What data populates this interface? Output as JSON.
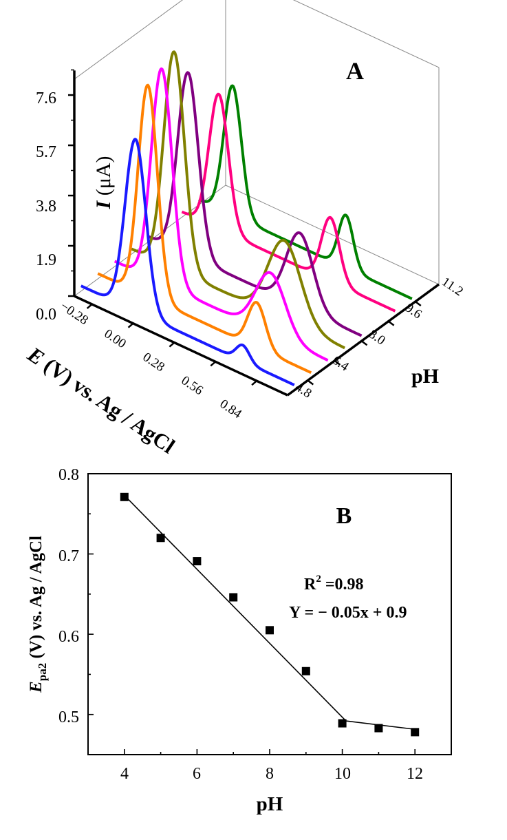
{
  "chart_data": [
    {
      "type": "waterfall-3d-line",
      "panel_label": "A",
      "z_label_italic": "I",
      "z_label_unit": " (μA)",
      "z_ticks": [
        "0.0",
        "1.9",
        "3.8",
        "5.7",
        "7.6"
      ],
      "z_range": [
        0,
        8.2
      ],
      "x_label_italic": "E",
      "x_label_rest": " (V) vs. Ag / AgCl",
      "x_ticks": [
        "−0.28",
        "0.00",
        "0.28",
        "0.56",
        "0.84"
      ],
      "x_tick_values": [
        -0.28,
        0.0,
        0.28,
        0.56,
        0.84
      ],
      "x_range": [
        -0.4,
        1.05
      ],
      "y_label": "pH",
      "y_ticks": [
        "4.8",
        "6.4",
        "8.0",
        "9.6",
        "11.2"
      ],
      "y_tick_values": [
        4.8,
        6.4,
        8.0,
        9.6,
        11.2
      ],
      "y_range": [
        3.6,
        12.6
      ],
      "series": [
        {
          "name": "pH 4",
          "pH": 4,
          "color": "#1a1aff",
          "baseline": 0.2,
          "peaks": [
            {
              "E": -0.03,
              "I": 6.5,
              "w": 0.07
            },
            {
              "E": 0.7,
              "I": 0.6,
              "w": 0.045
            }
          ]
        },
        {
          "name": "pH 5",
          "pH": 5,
          "color": "#ff8000",
          "baseline": 0.2,
          "peaks": [
            {
              "E": -0.06,
              "I": 8.0,
              "w": 0.065
            },
            {
              "E": 0.68,
              "I": 1.7,
              "w": 0.06
            }
          ]
        },
        {
          "name": "pH 6",
          "pH": 6,
          "color": "#ff00ff",
          "baseline": 0.2,
          "peaks": [
            {
              "E": -0.08,
              "I": 8.1,
              "w": 0.07
            },
            {
              "E": 0.66,
              "I": 2.3,
              "w": 0.1
            }
          ]
        },
        {
          "name": "pH 7",
          "pH": 7,
          "color": "#808000",
          "baseline": 0.2,
          "peaks": [
            {
              "E": -0.11,
              "I": 8.2,
              "w": 0.07
            },
            {
              "E": 0.64,
              "I": 3.0,
              "w": 0.11
            }
          ]
        },
        {
          "name": "pH 8",
          "pH": 8,
          "color": "#800080",
          "baseline": 0.2,
          "peaks": [
            {
              "E": -0.13,
              "I": 6.9,
              "w": 0.07
            },
            {
              "E": 0.63,
              "I": 2.8,
              "w": 0.09
            }
          ]
        },
        {
          "name": "pH 10",
          "pH": 10,
          "color": "#ff0080",
          "baseline": 0.2,
          "peaks": [
            {
              "E": -0.15,
              "I": 5.1,
              "w": 0.065
            },
            {
              "E": 0.61,
              "I": 2.4,
              "w": 0.06
            }
          ]
        },
        {
          "name": "pH 11",
          "pH": 11,
          "color": "#008000",
          "baseline": 0.2,
          "peaks": [
            {
              "E": -0.17,
              "I": 4.9,
              "w": 0.06
            },
            {
              "E": 0.6,
              "I": 2.0,
              "w": 0.05
            }
          ]
        }
      ]
    },
    {
      "type": "scatter",
      "panel_label": "B",
      "title": "",
      "xlabel": "pH",
      "ylabel_italic": "E",
      "ylabel_sub": "pa2",
      "ylabel_rest": " (V) vs. Ag / AgCl",
      "xlim": [
        3,
        13
      ],
      "ylim": [
        0.45,
        0.8
      ],
      "x_ticks": [
        4,
        6,
        8,
        10,
        12
      ],
      "x_tick_labels": [
        "4",
        "6",
        "8",
        "10",
        "12"
      ],
      "y_ticks": [
        0.5,
        0.6,
        0.7,
        0.8
      ],
      "y_tick_labels": [
        "0.5",
        "0.6",
        "0.7",
        "0.8"
      ],
      "points": [
        {
          "x": 4,
          "y": 0.771
        },
        {
          "x": 5,
          "y": 0.72
        },
        {
          "x": 6,
          "y": 0.691
        },
        {
          "x": 7,
          "y": 0.646
        },
        {
          "x": 8,
          "y": 0.605
        },
        {
          "x": 9,
          "y": 0.554
        },
        {
          "x": 10,
          "y": 0.489
        },
        {
          "x": 11,
          "y": 0.483
        },
        {
          "x": 12,
          "y": 0.478
        }
      ],
      "fit_lines": [
        {
          "x": [
            4,
            10.1
          ],
          "y": [
            0.773,
            0.492
          ]
        },
        {
          "x": [
            10.1,
            12.1
          ],
          "y": [
            0.492,
            0.481
          ]
        }
      ],
      "annotation_r2_base": "R",
      "annotation_r2_sup": "2",
      "annotation_r2_value": " =0.98",
      "annotation_equation": "Y = − 0.05x + 0.9"
    }
  ]
}
